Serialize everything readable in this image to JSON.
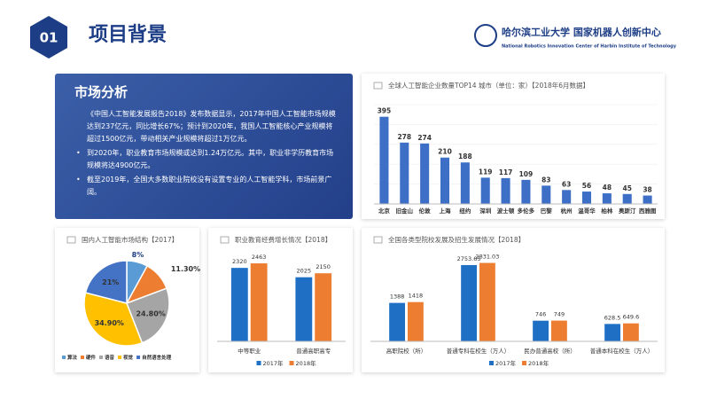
{
  "header": {
    "number": "01",
    "title": "项目背景",
    "logo_name": "哈尔滨工业大学 国家机器人创新中心",
    "logo_subtitle": "National Robotics Innovation Center of Harbin Institute of Technology"
  },
  "market": {
    "title": "市场分析",
    "paragraphs": [
      "《中国人工智能发展报告2018》发布数据显示，2017年中国人工智能市场规模达到237亿元，同比增长67%；预计到2020年，我国人工智能核心产业规模将超过1500亿元，带动相关产业规模将超过1万亿元。",
      "到2020年，职业教育市场规模或达到1.24万亿元。其中，职业非学历教育市场规模将达4900亿元。",
      "截至2019年，全国大多数职业院校没有设置专业的人工智能学科，市场前景广阔。"
    ]
  },
  "chart_data": [
    {
      "type": "bar",
      "title": "全球人工智能企业数量TOP14 城市（单位：家）【2018年6月数据】",
      "categories": [
        "北京",
        "旧金山",
        "伦敦",
        "上海",
        "纽约",
        "深圳",
        "波士顿",
        "多伦多",
        "巴黎",
        "杭州",
        "温哥华",
        "柏林",
        "奥斯汀",
        "西雅图"
      ],
      "values": [
        395,
        278,
        274,
        210,
        188,
        119,
        117,
        109,
        83,
        63,
        56,
        48,
        45,
        38
      ],
      "color": "#3d6fc7",
      "ylim": [
        0,
        450
      ]
    },
    {
      "type": "pie",
      "title": "国内人工智能市场结构【2017】",
      "categories": [
        "算法",
        "硬件",
        "语音",
        "视觉",
        "自然语言处理"
      ],
      "values": [
        8,
        11.3,
        24.8,
        34.9,
        21
      ],
      "value_labels": [
        "8%",
        "11.30%",
        "24.80%",
        "34.90%",
        "21%"
      ],
      "colors": [
        "#5b9bd5",
        "#ed7d31",
        "#a5a5a5",
        "#ffc000",
        "#4472c4"
      ]
    },
    {
      "type": "grouped_bar",
      "title": "职业教育经费增长情况【2018】",
      "categories": [
        "中等职业",
        "普通高职高专"
      ],
      "series": [
        {
          "name": "2017年",
          "color": "#1f6fc5",
          "values": [
            2320,
            2025
          ]
        },
        {
          "name": "2018年",
          "color": "#ed7d31",
          "values": [
            2463,
            2150
          ]
        }
      ],
      "ylim": [
        0,
        2800
      ]
    },
    {
      "type": "grouped_bar",
      "title": "全国各类型院校发展及招生发展情况【2018】",
      "categories": [
        "高职院校（所）",
        "普通专科在校生（万人）",
        "民办普通高校（所）",
        "普通本科在校生（万人）"
      ],
      "series": [
        {
          "name": "2017年",
          "color": "#1f6fc5",
          "values": [
            1388,
            2753.65,
            746,
            628.5
          ]
        },
        {
          "name": "2018年",
          "color": "#ed7d31",
          "values": [
            1418,
            2831.03,
            749,
            649.6
          ]
        }
      ],
      "ylim": [
        0,
        3200
      ]
    }
  ]
}
